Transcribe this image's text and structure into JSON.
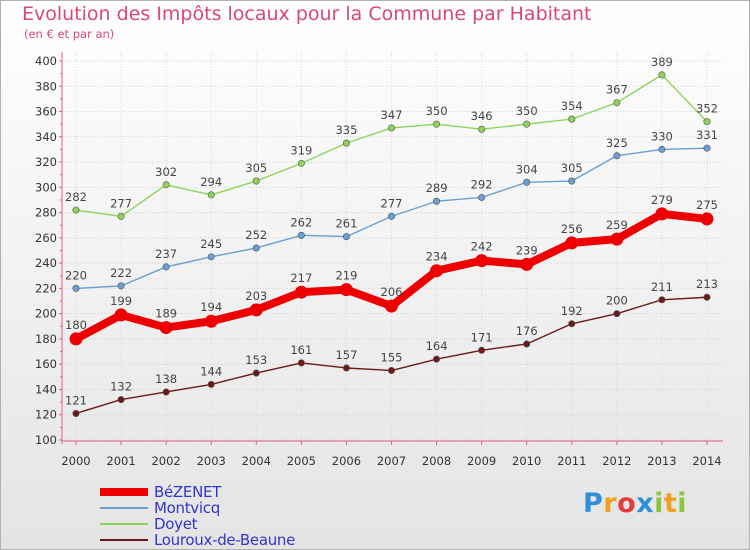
{
  "header": {
    "title": "Evolution des Impôts locaux pour la Commune par Habitant",
    "subtitle": "(en € et par an)"
  },
  "logo": {
    "text": "Proxiti",
    "letters": [
      {
        "ch": "P",
        "color": "#2f8fd8"
      },
      {
        "ch": "r",
        "color": "#f0a020"
      },
      {
        "ch": "o",
        "color": "#e23d3d"
      },
      {
        "ch": "x",
        "color": "#2f8fd8"
      },
      {
        "ch": "i",
        "color": "#8cc63f"
      },
      {
        "ch": "t",
        "color": "#f0a020"
      },
      {
        "ch": "i",
        "color": "#8cc63f"
      }
    ]
  },
  "chart_data": {
    "type": "line",
    "title": "Evolution des Impôts locaux pour la Commune par Habitant",
    "subtitle": "(en € et par an)",
    "xlabel": "",
    "ylabel": "",
    "categories": [
      "2000",
      "2001",
      "2002",
      "2003",
      "2004",
      "2005",
      "2006",
      "2007",
      "2008",
      "2009",
      "2010",
      "2011",
      "2012",
      "2013",
      "2014"
    ],
    "ylim": [
      100,
      400
    ],
    "yticks": [
      100,
      120,
      140,
      160,
      180,
      200,
      220,
      240,
      260,
      280,
      300,
      320,
      340,
      360,
      380,
      400
    ],
    "grid": true,
    "legend_position": "bottom-left",
    "series": [
      {
        "name": "BéZENET",
        "color": "#ee0000",
        "bold": true,
        "values": [
          180,
          199,
          189,
          194,
          203,
          217,
          219,
          206,
          234,
          242,
          239,
          256,
          259,
          279,
          275
        ]
      },
      {
        "name": "Montvicq",
        "color": "#6a9fd0",
        "bold": false,
        "values": [
          220,
          222,
          237,
          245,
          252,
          262,
          261,
          277,
          289,
          292,
          304,
          305,
          325,
          330,
          331
        ]
      },
      {
        "name": "Doyet",
        "color": "#8fd45a",
        "bold": false,
        "values": [
          282,
          277,
          302,
          294,
          305,
          319,
          335,
          347,
          350,
          346,
          350,
          354,
          367,
          389,
          352
        ]
      },
      {
        "name": "Louroux-de-Beaune",
        "color": "#6b1a1a",
        "bold": false,
        "values": [
          121,
          132,
          138,
          144,
          153,
          161,
          157,
          155,
          164,
          171,
          176,
          192,
          200,
          211,
          213
        ]
      }
    ]
  }
}
